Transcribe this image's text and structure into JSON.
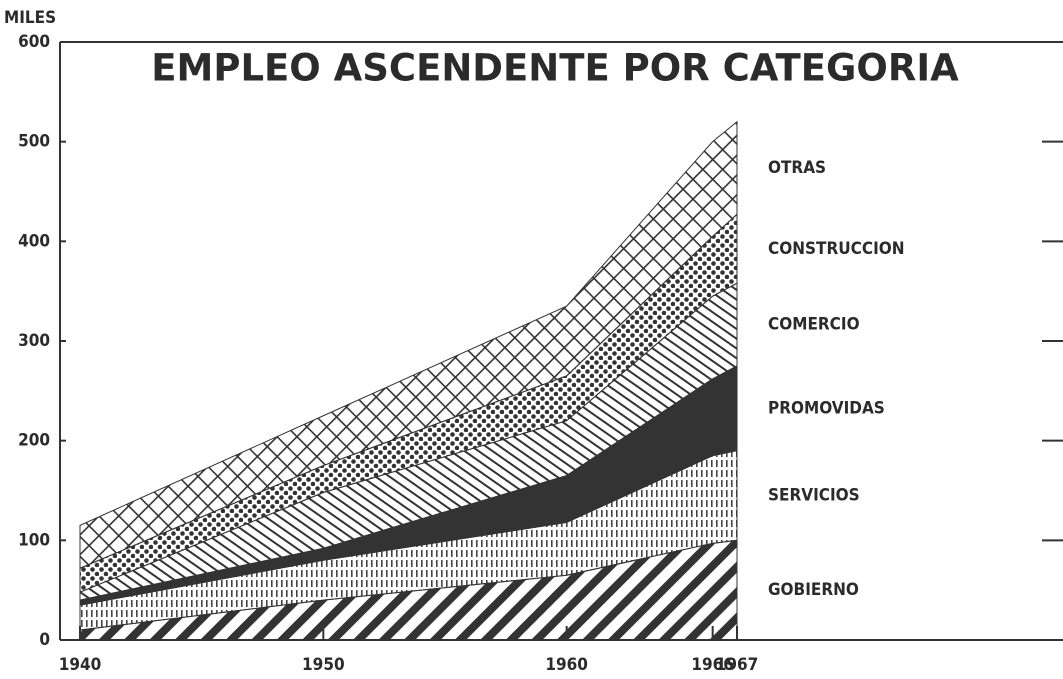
{
  "chart_data": {
    "type": "stacked-area",
    "title": "EMPLEO ASCENDENTE POR CATEGORIA",
    "y_label": "MILES",
    "x": [
      1940,
      1950,
      1960,
      1966,
      1967
    ],
    "xlim": [
      1940,
      1967
    ],
    "xticks": [
      1940,
      1950,
      1960,
      1966,
      1967
    ],
    "ylim": [
      0,
      600
    ],
    "yticks": [
      0,
      100,
      200,
      300,
      400,
      500,
      600
    ],
    "series": [
      {
        "name": "GOBIERNO",
        "color": "#333333",
        "pattern": "wide-diagonal",
        "values": [
          10,
          40,
          65,
          97,
          100
        ]
      },
      {
        "name": "SERVICIOS",
        "color": "#333333",
        "pattern": "vertical-dash",
        "values": [
          25,
          40,
          53,
          88,
          90
        ]
      },
      {
        "name": "PROMOVIDAS",
        "color": "#333333",
        "pattern": "solid",
        "values": [
          5,
          12,
          47,
          77,
          85
        ]
      },
      {
        "name": "COMERCIO",
        "color": "#333333",
        "pattern": "thin-diagonal",
        "values": [
          8,
          56,
          55,
          83,
          83
        ]
      },
      {
        "name": "CONSTRUCCION",
        "color": "#333333",
        "pattern": "dots",
        "values": [
          24,
          27,
          45,
          60,
          69
        ]
      },
      {
        "name": "OTRAS",
        "color": "#333333",
        "pattern": "crosshatch",
        "values": [
          43,
          50,
          70,
          95,
          93
        ]
      }
    ]
  }
}
